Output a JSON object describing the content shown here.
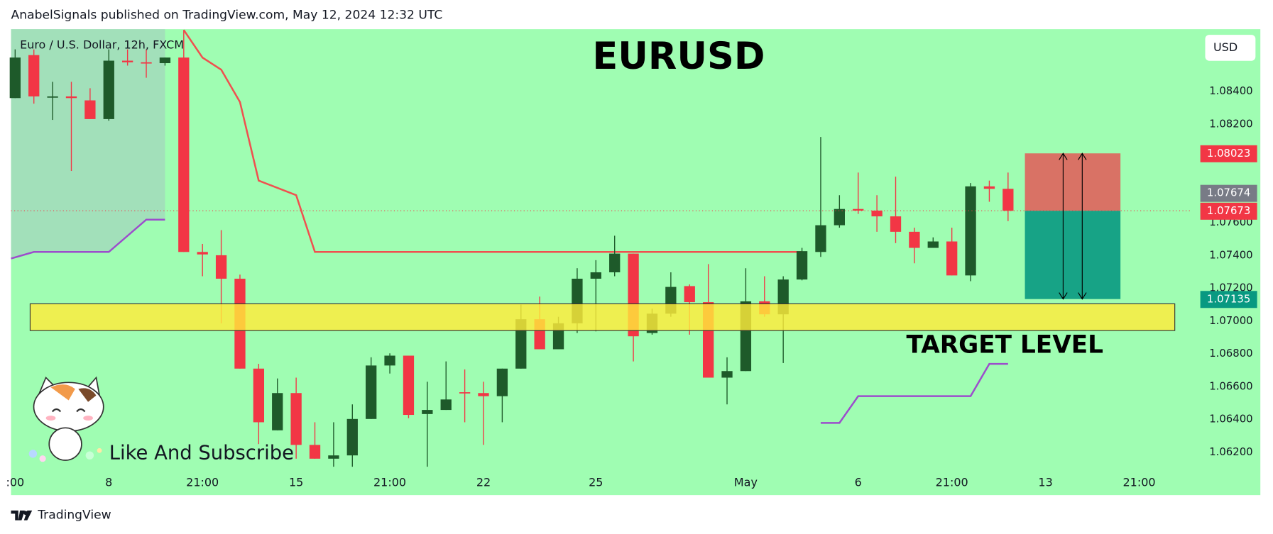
{
  "page": {
    "header": "AnabelSignals published on TradingView.com, May 12, 2024 12:32 UTC",
    "footer": "TradingView",
    "caption": "Like And Subscribe"
  },
  "chart_data": {
    "type": "candlestick",
    "title": "EURUSD",
    "symbol": "Euro / U.S. Dollar, 12h, FXCM",
    "currency": "USD",
    "annotation": "TARGET LEVEL",
    "up_color": "#1e5a2a",
    "down_color": "#f23645",
    "x": [
      0,
      1,
      2,
      3,
      4,
      5,
      6,
      7,
      8,
      9,
      10,
      11,
      12,
      13,
      14,
      15,
      16,
      17,
      18,
      19,
      20,
      21,
      22,
      23,
      24,
      25,
      26,
      27,
      28,
      29,
      30,
      31,
      32,
      33,
      34,
      35,
      36,
      37,
      38,
      39,
      40,
      41,
      42,
      43,
      44,
      45,
      46,
      47,
      48,
      49,
      50,
      51,
      52,
      53
    ],
    "open": [
      1.0836,
      1.08622,
      1.0837,
      1.0837,
      1.08346,
      1.08232,
      1.08588,
      1.08578,
      1.08573,
      1.08607,
      1.07422,
      1.07402,
      1.07259,
      1.06711,
      1.06335,
      1.06562,
      1.06246,
      1.06162,
      1.06182,
      1.06404,
      1.0673,
      1.0679,
      1.06434,
      1.06459,
      1.06567,
      1.06562,
      1.06543,
      1.06711,
      1.07012,
      1.06829,
      1.06987,
      1.07259,
      1.07298,
      1.07412,
      1.06928,
      1.07046,
      1.07214,
      1.07116,
      1.06656,
      1.06696,
      1.07121,
      1.07042,
      1.07254,
      1.07422,
      1.07585,
      1.07684,
      1.07674,
      1.07639,
      1.07545,
      1.07447,
      1.07486,
      1.07279,
      1.07822,
      1.07807
    ],
    "high": [
      1.08657,
      1.08657,
      1.08459,
      1.08459,
      1.0842,
      1.08657,
      1.08657,
      1.08657,
      1.08607,
      1.08775,
      1.07471,
      1.07555,
      1.07284,
      1.0674,
      1.06651,
      1.06656,
      1.06384,
      1.06384,
      1.06493,
      1.0678,
      1.06804,
      1.0679,
      1.06631,
      1.06755,
      1.06706,
      1.06631,
      1.06711,
      1.07101,
      1.0715,
      1.07027,
      1.07323,
      1.07372,
      1.07521,
      1.07412,
      1.07076,
      1.07298,
      1.07224,
      1.07348,
      1.0678,
      1.07323,
      1.07274,
      1.07274,
      1.07447,
      1.08123,
      1.07768,
      1.07906,
      1.07768,
      1.07881,
      1.0757,
      1.07511,
      1.0757,
      1.07842,
      1.07857,
      1.07906
    ],
    "low": [
      1.0836,
      1.08326,
      1.08227,
      1.07916,
      1.08232,
      1.08222,
      1.08558,
      1.08484,
      1.08558,
      1.07422,
      1.07274,
      1.06987,
      1.06711,
      1.06251,
      1.06335,
      1.06162,
      1.06162,
      1.06113,
      1.06113,
      1.06404,
      1.06681,
      1.06409,
      1.06113,
      1.06459,
      1.06384,
      1.06246,
      1.06384,
      1.06711,
      1.06829,
      1.06829,
      1.06928,
      1.06938,
      1.07274,
      1.06755,
      1.06918,
      1.07027,
      1.06918,
      1.06656,
      1.06493,
      1.06696,
      1.07027,
      1.06745,
      1.07249,
      1.07392,
      1.0757,
      1.07654,
      1.07545,
      1.07476,
      1.07353,
      1.07447,
      1.07279,
      1.07244,
      1.07728,
      1.0761
    ],
    "close": [
      1.08607,
      1.0837,
      1.0837,
      1.0836,
      1.08232,
      1.08588,
      1.08578,
      1.08573,
      1.08607,
      1.07422,
      1.07407,
      1.07259,
      1.06711,
      1.06384,
      1.06562,
      1.06246,
      1.06162,
      1.06182,
      1.06404,
      1.0673,
      1.0679,
      1.06429,
      1.06459,
      1.06523,
      1.06562,
      1.06543,
      1.06711,
      1.07012,
      1.06829,
      1.06987,
      1.07259,
      1.07298,
      1.07412,
      1.06908,
      1.07046,
      1.07209,
      1.07116,
      1.06656,
      1.06696,
      1.07121,
      1.07042,
      1.07254,
      1.07427,
      1.07585,
      1.07684,
      1.07674,
      1.07639,
      1.07545,
      1.07447,
      1.07486,
      1.07279,
      1.07822,
      1.07807,
      1.07673
    ],
    "lines": [
      {
        "color": "#f0504f",
        "x": [
          9,
          10,
          11,
          12,
          13,
          15,
          16,
          42
        ],
        "values": [
          1.08775,
          1.08607,
          1.08533,
          1.08336,
          1.07857,
          1.07768,
          1.07422,
          1.07422
        ]
      },
      {
        "color": "#9c4dcc",
        "x": [
          -0.22,
          1,
          5,
          7,
          8,
          25,
          43,
          44,
          45,
          51,
          52,
          53
        ],
        "values": [
          1.07382,
          1.07422,
          1.07422,
          1.07619,
          1.07619,
          null,
          1.0638,
          1.0638,
          1.06543,
          1.06543,
          1.0674,
          1.0674
        ]
      }
    ],
    "target_zone": {
      "x": [
        0.8,
        61.9
      ],
      "y": [
        1.06943,
        1.07106
      ],
      "color": "#ffeb3b"
    },
    "position": {
      "x": [
        53.9,
        59.0
      ],
      "entry": 1.07673,
      "stop": 1.08023,
      "target": 1.07135,
      "stop_color": "#f23645",
      "target_color": "#089981"
    },
    "price_labels": [
      {
        "value": 1.08023,
        "color": "#f23645"
      },
      {
        "value": 1.07673,
        "color": "#f23645"
      },
      {
        "value": 1.07674,
        "color": "#787b86"
      },
      {
        "value": 1.07135,
        "color": "#089981"
      }
    ],
    "xlim": [
      -0.22,
      62.7
    ],
    "xticks": [
      {
        "value": 0,
        "label": ":00"
      },
      {
        "value": 5,
        "label": "8"
      },
      {
        "value": 10,
        "label": "21:00"
      },
      {
        "value": 15,
        "label": "15"
      },
      {
        "value": 20,
        "label": "21:00"
      },
      {
        "value": 25,
        "label": "22"
      },
      {
        "value": 31,
        "label": "25"
      },
      {
        "value": 39,
        "label": "May"
      },
      {
        "value": 45,
        "label": "6"
      },
      {
        "value": 50,
        "label": "21:00"
      },
      {
        "value": 55,
        "label": "13"
      },
      {
        "value": 60,
        "label": "21:00"
      }
    ],
    "ylim": [
      1.0594,
      1.0878
    ],
    "yticks": [
      {
        "value": 1.062,
        "label": "1.06200"
      },
      {
        "value": 1.064,
        "label": "1.06400"
      },
      {
        "value": 1.066,
        "label": "1.06600"
      },
      {
        "value": 1.068,
        "label": "1.06800"
      },
      {
        "value": 1.07,
        "label": "1.07000"
      },
      {
        "value": 1.072,
        "label": "1.07200"
      },
      {
        "value": 1.074,
        "label": "1.07400"
      },
      {
        "value": 1.076,
        "label": "1.07600"
      },
      {
        "value": 1.082,
        "label": "1.08200"
      },
      {
        "value": 1.084,
        "label": "1.08400"
      }
    ]
  }
}
